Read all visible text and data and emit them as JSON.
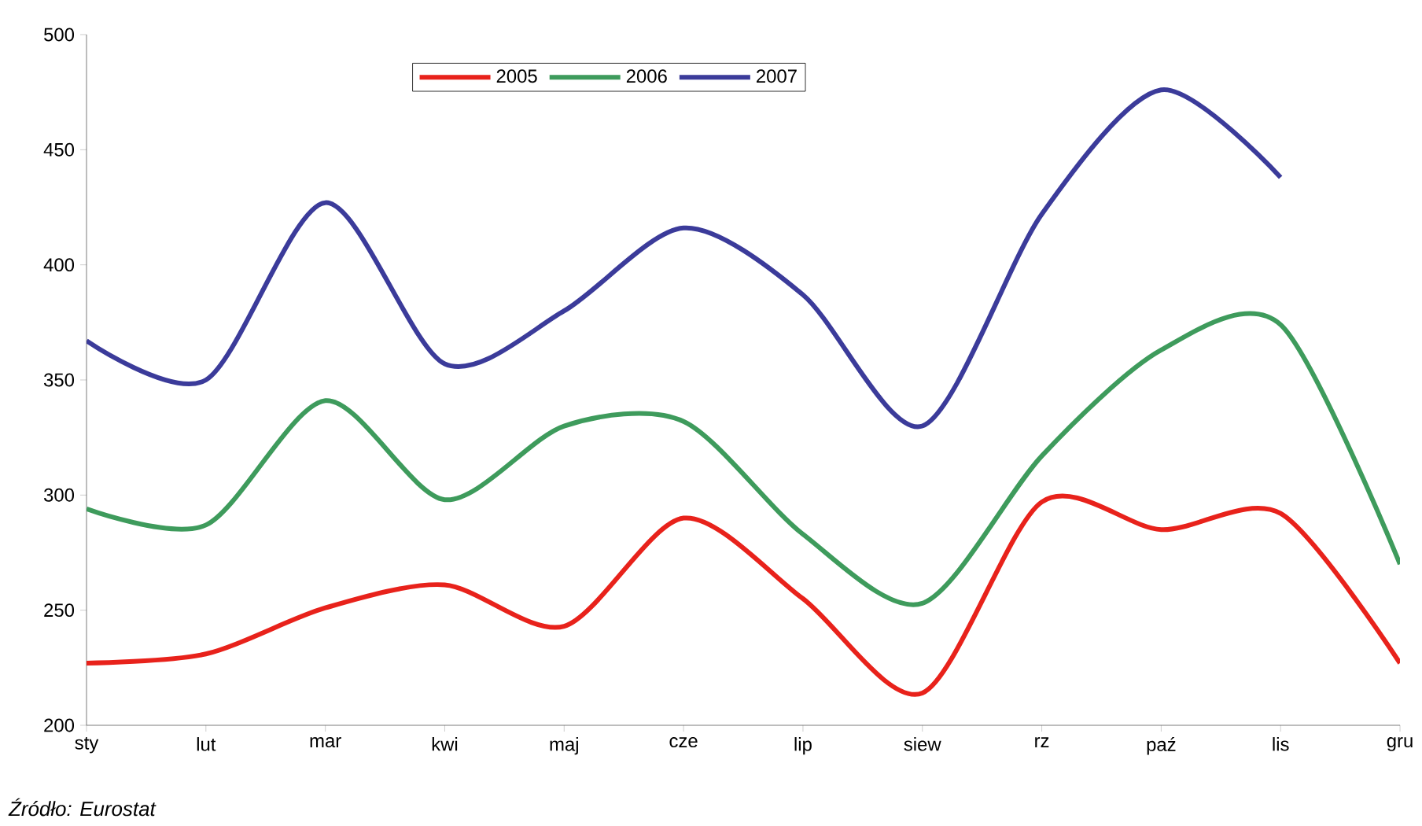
{
  "chart_data": {
    "type": "line",
    "categories": [
      "sty",
      "lut",
      "mar",
      "kwi",
      "maj",
      "cze",
      "lip",
      "siew",
      "rz",
      "paź",
      "lis",
      "gru"
    ],
    "series": [
      {
        "name": "2005",
        "color": "#e8221b",
        "values": [
          227,
          231,
          251,
          261,
          243,
          290,
          255,
          214,
          297,
          285,
          292,
          227
        ]
      },
      {
        "name": "2006",
        "color": "#3e9b5c",
        "values": [
          294,
          287,
          341,
          298,
          330,
          332,
          283,
          253,
          317,
          363,
          374,
          270
        ]
      },
      {
        "name": "2007",
        "color": "#3b3b9a",
        "values": [
          367,
          350,
          427,
          357,
          380,
          416,
          387,
          330,
          422,
          476,
          438,
          null
        ]
      }
    ],
    "ylim": [
      200,
      500
    ],
    "yticks": [
      200,
      250,
      300,
      350,
      400,
      450,
      500
    ],
    "grid": false,
    "legend": "top",
    "marker": "none",
    "line_style": "solid",
    "annotations": [
      "Źródło:  Eurostat"
    ]
  }
}
